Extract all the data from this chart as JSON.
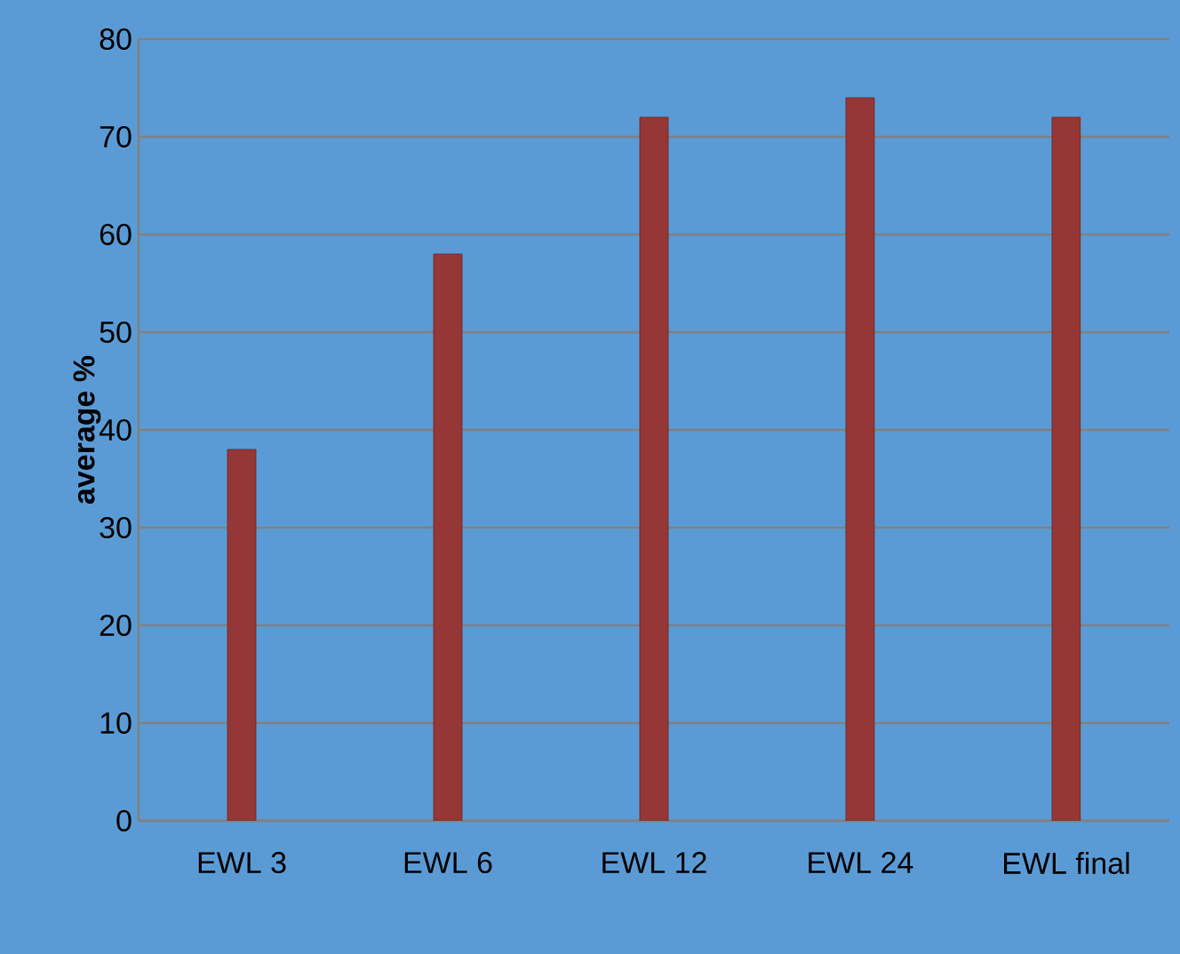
{
  "chart_data": {
    "type": "bar",
    "ylabel": "average %",
    "categories": [
      "EWL 3",
      "EWL 6",
      "EWL 12",
      "EWL 24",
      "EWL final"
    ],
    "values": [
      38,
      58,
      72,
      74,
      72
    ],
    "color": "#953735",
    "ylim": [
      0,
      80
    ],
    "yticks": [
      0,
      10,
      20,
      30,
      40,
      50,
      60,
      70,
      80
    ],
    "grid": "y"
  }
}
